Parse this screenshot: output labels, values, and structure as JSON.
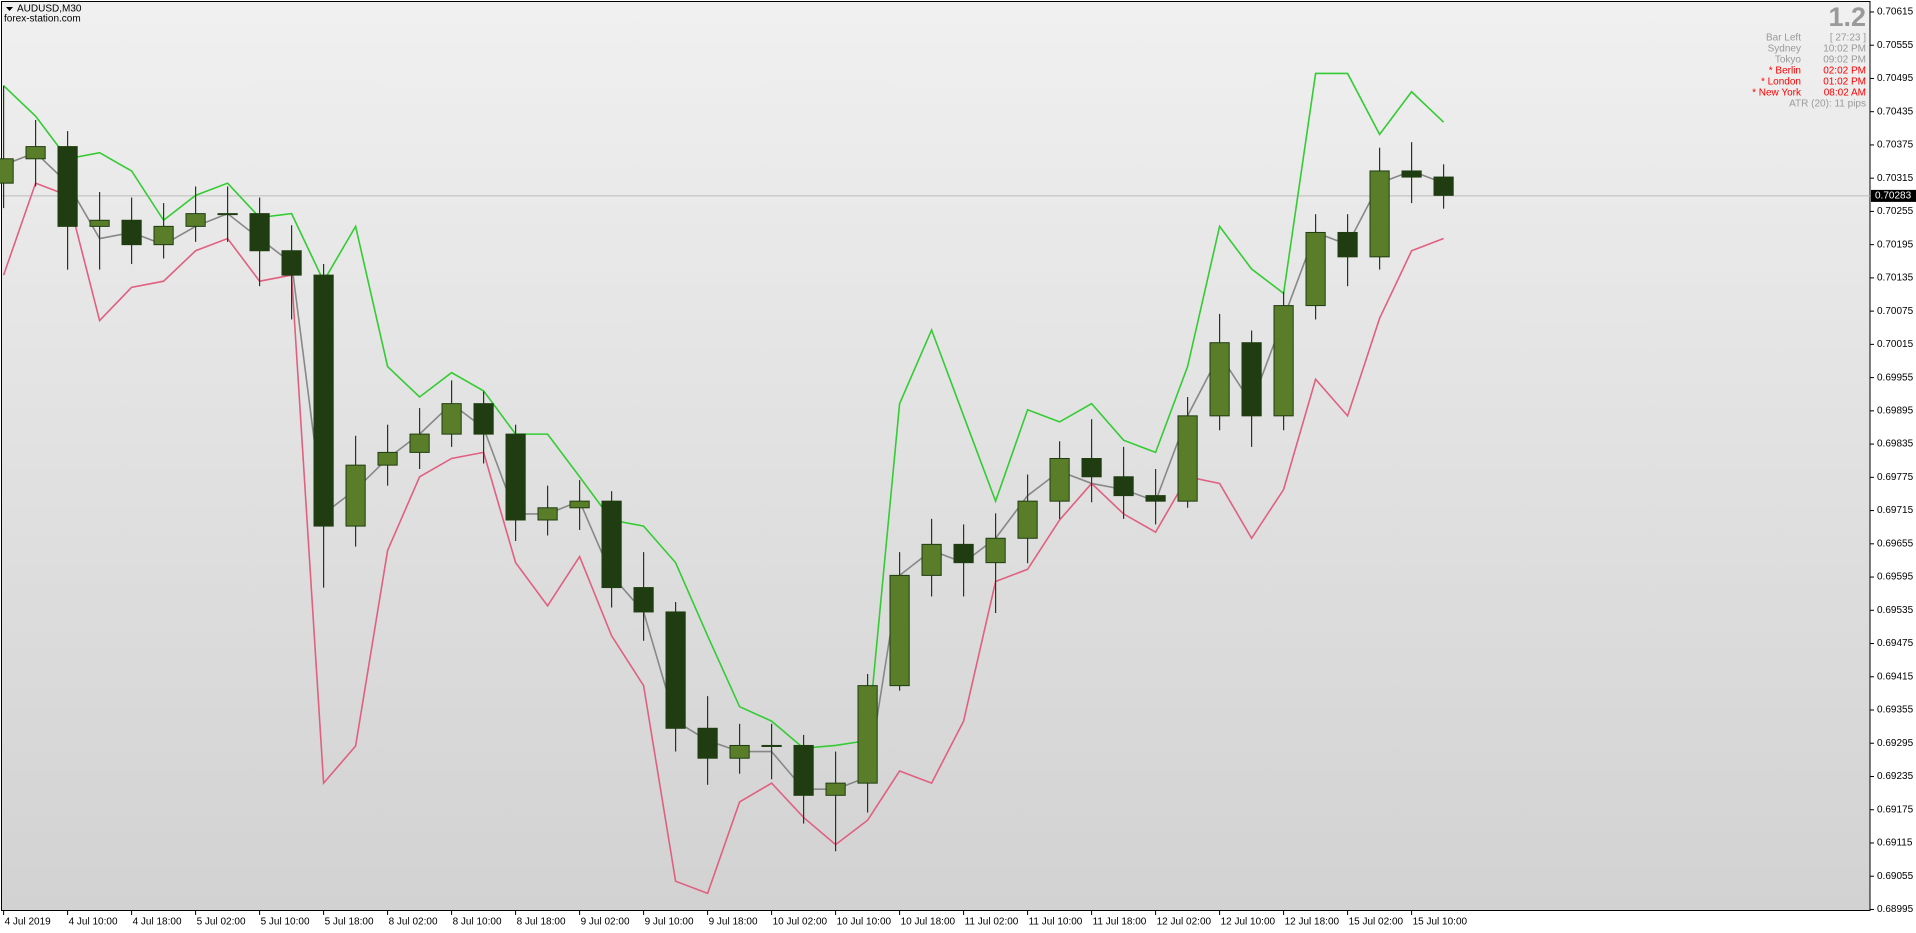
{
  "chart_data": {
    "type": "candlestick",
    "title": "AUDUSD,M30",
    "subtitle": "forex-station.com",
    "x": [
      0,
      8,
      16,
      24,
      32,
      40,
      48,
      56,
      64,
      72,
      80,
      88,
      96,
      104,
      112,
      120,
      128,
      136,
      144,
      152,
      160,
      168,
      176,
      184,
      192,
      200,
      208,
      216,
      224,
      232,
      240,
      248,
      256,
      264,
      272,
      280,
      288,
      296,
      304,
      312,
      320,
      328,
      336,
      344,
      352,
      360
    ],
    "open": [
      0.70306,
      0.7035,
      0.70372,
      0.70228,
      0.70239,
      0.70195,
      0.70228,
      0.70251,
      0.70251,
      0.70184,
      0.7014,
      0.69687,
      0.69797,
      0.6982,
      0.69853,
      0.69908,
      0.69853,
      0.69698,
      0.6972,
      0.69732,
      0.69576,
      0.69532,
      0.69322,
      0.69268,
      0.69291,
      0.69291,
      0.69201,
      0.69223,
      0.69399,
      0.69598,
      0.69654,
      0.69621,
      0.69665,
      0.69732,
      0.69809,
      0.69776,
      0.69742,
      0.69732,
      0.69886,
      0.70018,
      0.69886,
      0.70085,
      0.70217,
      0.70173,
      0.70328,
      0.70317
    ],
    "high": [
      0.70482,
      0.7042,
      0.704,
      0.7029,
      0.7028,
      0.7027,
      0.703,
      0.703,
      0.7028,
      0.7023,
      0.7016,
      0.6985,
      0.6987,
      0.699,
      0.6995,
      0.6993,
      0.6987,
      0.6976,
      0.6977,
      0.6975,
      0.6964,
      0.6955,
      0.6938,
      0.6933,
      0.6933,
      0.6931,
      0.6928,
      0.6942,
      0.6964,
      0.697,
      0.6969,
      0.6971,
      0.6978,
      0.6984,
      0.6988,
      0.6983,
      0.6979,
      0.6992,
      0.7007,
      0.7004,
      0.7011,
      0.7025,
      0.7025,
      0.7037,
      0.7038,
      0.7034
    ],
    "low": [
      0.70261,
      0.703,
      0.7015,
      0.7015,
      0.7016,
      0.7017,
      0.702,
      0.702,
      0.7012,
      0.7006,
      0.69576,
      0.6965,
      0.6976,
      0.6979,
      0.6983,
      0.698,
      0.6966,
      0.6967,
      0.6968,
      0.6954,
      0.6948,
      0.6928,
      0.6922,
      0.6924,
      0.6923,
      0.6915,
      0.691,
      0.6917,
      0.6939,
      0.6956,
      0.6956,
      0.6953,
      0.6962,
      0.697,
      0.6973,
      0.697,
      0.6969,
      0.6972,
      0.6986,
      0.6983,
      0.6986,
      0.7006,
      0.7012,
      0.7015,
      0.7027,
      0.7026
    ],
    "close": [
      0.7035,
      0.70372,
      0.70228,
      0.70239,
      0.70195,
      0.70228,
      0.70251,
      0.70251,
      0.70184,
      0.7014,
      0.69687,
      0.69797,
      0.6982,
      0.69853,
      0.69908,
      0.69853,
      0.69698,
      0.6972,
      0.69732,
      0.69576,
      0.69532,
      0.69322,
      0.69268,
      0.69291,
      0.69291,
      0.69201,
      0.69223,
      0.69399,
      0.69598,
      0.69654,
      0.69621,
      0.69665,
      0.69732,
      0.69809,
      0.69776,
      0.69742,
      0.69732,
      0.69886,
      0.70018,
      0.69886,
      0.70085,
      0.70217,
      0.70173,
      0.70328,
      0.70317,
      0.70284
    ],
    "candle_colors": {
      "up": "#5a7d2a",
      "down": "#1f3d10",
      "wick": "#1f3d10"
    },
    "bands": [
      {
        "color": "#33cc33",
        "values": [
          0.70482,
          0.70427,
          0.7035,
          0.70361,
          0.70328,
          0.70239,
          0.70284,
          0.70306,
          0.70244,
          0.70251,
          0.70129,
          0.70228,
          0.69975,
          0.6992,
          0.69964,
          0.69931,
          0.69853,
          0.69853,
          0.69776,
          0.69698,
          0.69687,
          0.69621,
          0.69489,
          0.69361,
          0.69335,
          0.69286,
          0.69291,
          0.693,
          0.69908,
          0.70041,
          0.69886,
          0.69732,
          0.69897,
          0.69875,
          0.69908,
          0.69842,
          0.6982,
          0.69975,
          0.70228,
          0.70151,
          0.70107,
          0.70504,
          0.70504,
          0.70394,
          0.70471,
          0.70416
        ]
      },
      {
        "color": "#888888",
        "values": [
          0.70339,
          0.70361,
          0.70306,
          0.70206,
          0.70217,
          0.70195,
          0.70228,
          0.70251,
          0.70206,
          0.70162,
          0.69709,
          0.69753,
          0.69809,
          0.69853,
          0.69908,
          0.69864,
          0.69709,
          0.69709,
          0.69732,
          0.69598,
          0.69532,
          0.69335,
          0.693,
          0.6928,
          0.6928,
          0.69212,
          0.69212,
          0.69234,
          0.69598,
          0.69643,
          0.69621,
          0.69665,
          0.69742,
          0.69786,
          0.69764,
          0.69753,
          0.69732,
          0.69886,
          0.69997,
          0.69908,
          0.70062,
          0.70217,
          0.70195,
          0.70306,
          0.70328,
          0.70306
        ]
      },
      {
        "color": "#e06080",
        "values": [
          0.7014,
          0.70306,
          0.70284,
          0.70058,
          0.70118,
          0.70129,
          0.70184,
          0.70206,
          0.70129,
          0.7014,
          0.69223,
          0.6929,
          0.69643,
          0.69776,
          0.69809,
          0.6982,
          0.69621,
          0.69543,
          0.69632,
          0.69489,
          0.69399,
          0.69046,
          0.69024,
          0.69189,
          0.69223,
          0.69161,
          0.69112,
          0.69156,
          0.69245,
          0.69223,
          0.69335,
          0.69587,
          0.69609,
          0.69698,
          0.69764,
          0.69709,
          0.69676,
          0.69776,
          0.69764,
          0.69665,
          0.69753,
          0.69952,
          0.69886,
          0.70062,
          0.70184,
          0.70206
        ]
      }
    ],
    "current_price": 0.70283,
    "xlim": [
      -0.4,
      466.6
    ],
    "ylim": [
      0.68994,
      0.70633
    ],
    "xticks": [
      {
        "value": 0,
        "label": "4 Jul 2019"
      },
      {
        "value": 16,
        "label": "4 Jul 10:00"
      },
      {
        "value": 32,
        "label": "4 Jul 18:00"
      },
      {
        "value": 48,
        "label": "5 Jul 02:00"
      },
      {
        "value": 64,
        "label": "5 Jul 10:00"
      },
      {
        "value": 80,
        "label": "5 Jul 18:00"
      },
      {
        "value": 96,
        "label": "8 Jul 02:00"
      },
      {
        "value": 112,
        "label": "8 Jul 10:00"
      },
      {
        "value": 128,
        "label": "8 Jul 18:00"
      },
      {
        "value": 144,
        "label": "9 Jul 02:00"
      },
      {
        "value": 160,
        "label": "9 Jul 10:00"
      },
      {
        "value": 176,
        "label": "9 Jul 18:00"
      },
      {
        "value": 192,
        "label": "10 Jul 02:00"
      },
      {
        "value": 208,
        "label": "10 Jul 10:00"
      },
      {
        "value": 224,
        "label": "10 Jul 18:00"
      },
      {
        "value": 240,
        "label": "11 Jul 02:00"
      },
      {
        "value": 256,
        "label": "11 Jul 10:00"
      },
      {
        "value": 272,
        "label": "11 Jul 18:00"
      },
      {
        "value": 288,
        "label": "12 Jul 02:00"
      },
      {
        "value": 304,
        "label": "12 Jul 10:00"
      },
      {
        "value": 320,
        "label": "12 Jul 18:00"
      },
      {
        "value": 336,
        "label": "15 Jul 02:00"
      },
      {
        "value": 352,
        "label": "15 Jul 10:00"
      }
    ],
    "yticks": [
      0.70615,
      0.70555,
      0.70495,
      0.70435,
      0.70375,
      0.70315,
      0.70255,
      0.70195,
      0.70135,
      0.70075,
      0.70015,
      0.69955,
      0.69895,
      0.69835,
      0.69775,
      0.69715,
      0.69655,
      0.69595,
      0.69535,
      0.69475,
      0.69415,
      0.69355,
      0.69295,
      0.69235,
      0.69175,
      0.69115,
      0.69055,
      0.68995
    ],
    "info_panel": {
      "value": "1.2",
      "rows": [
        {
          "label": "Bar Left",
          "value": "[ 27:23 ]",
          "color": "#9a9a9a"
        },
        {
          "label": "Sydney",
          "value": "10:02 PM",
          "color": "#9a9a9a"
        },
        {
          "label": "Tokyo",
          "value": "09:02 PM",
          "color": "#9a9a9a"
        },
        {
          "label": "* Berlin",
          "value": "02:02 PM",
          "color": "#ff0000"
        },
        {
          "label": "* London",
          "value": "01:02 PM",
          "color": "#ff0000"
        },
        {
          "label": "* New York",
          "value": "08:02 AM",
          "color": "#ff0000"
        }
      ],
      "atr": "ATR (20): 11 pips"
    }
  }
}
